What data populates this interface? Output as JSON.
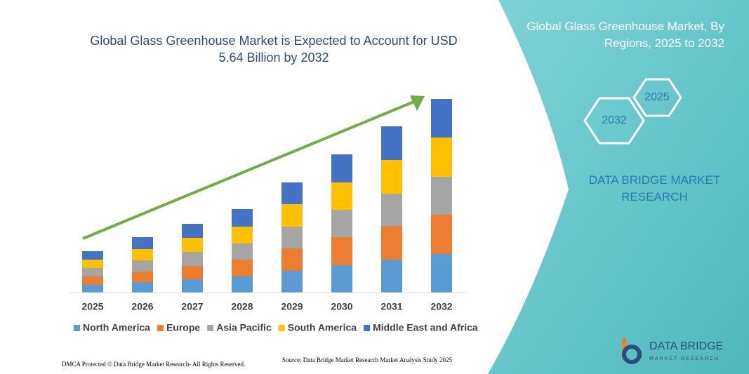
{
  "chart_data": {
    "type": "stacked-bar",
    "title": "Global Glass Greenhouse Market is Expected to Account for USD 5.64 Billion by 2032",
    "categories": [
      "2025",
      "2026",
      "2027",
      "2028",
      "2029",
      "2030",
      "2031",
      "2032"
    ],
    "series": [
      {
        "name": "North America",
        "color": "#5b9bd5",
        "values": [
          11,
          15,
          19,
          23,
          31,
          39,
          47,
          55
        ]
      },
      {
        "name": "Europe",
        "color": "#ed7d31",
        "values": [
          12,
          15,
          19,
          24,
          32,
          40,
          48,
          56
        ]
      },
      {
        "name": "Asia Pacific",
        "color": "#a5a5a5",
        "values": [
          12,
          16,
          20,
          23,
          31,
          39,
          46,
          54
        ]
      },
      {
        "name": "South America",
        "color": "#ffc000",
        "values": [
          12,
          16,
          20,
          24,
          32,
          39,
          48,
          56
        ]
      },
      {
        "name": "Middle East and Africa",
        "color": "#4472c4",
        "values": [
          12,
          17,
          20,
          25,
          31,
          40,
          48,
          55
        ]
      }
    ],
    "legend": "bottom"
  },
  "side_panel": {
    "title": "Global Glass Greenhouse Market, By Regions, 2025 to 2032",
    "hexagons": [
      "2032",
      "2025"
    ],
    "brand": "DATA BRIDGE MARKET RESEARCH"
  },
  "logo": {
    "name": "DATA BRIDGE",
    "tagline": "MARKET RESEARCH"
  },
  "footer": {
    "copyright": "DMCA Protected © Data Bridge Market Research- All Rights Reserved.",
    "source": "Source: Data Bridge Market Research  Market Analysis Study 2025"
  }
}
